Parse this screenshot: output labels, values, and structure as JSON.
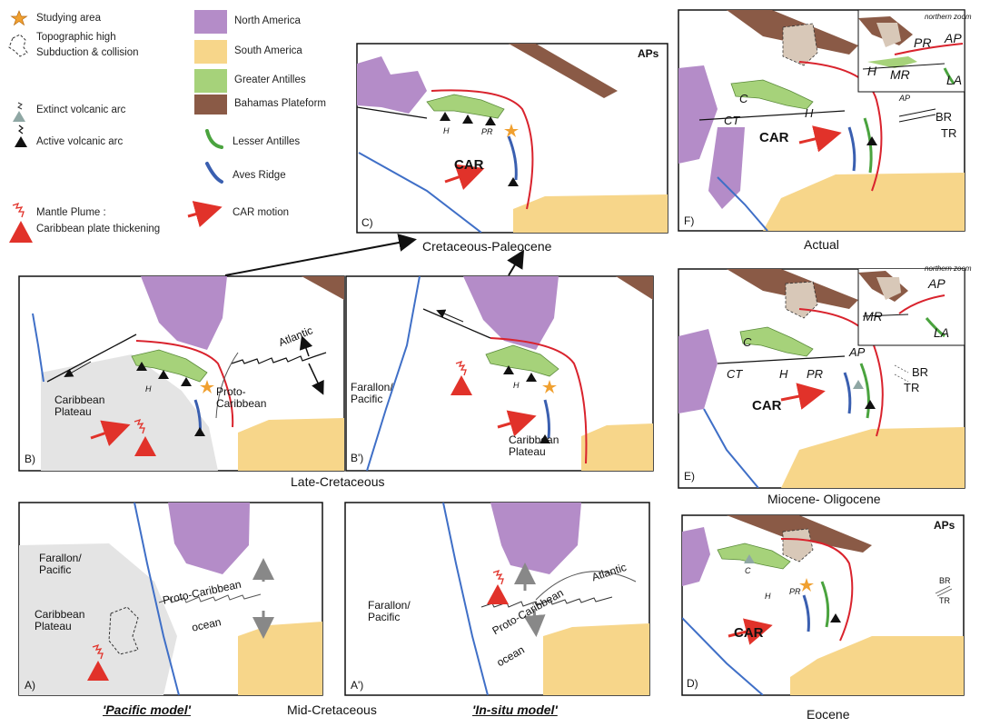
{
  "legend": {
    "items": [
      {
        "icon": "star-icon",
        "label": "Studying area"
      },
      {
        "icon": "dashed-outline-icon",
        "label": "Topographic high"
      },
      {
        "icon": "subduction-icon",
        "label": "Subduction & collision"
      },
      {
        "icon": "grey-triangle-icon",
        "label": "Extinct volcanic arc"
      },
      {
        "icon": "black-triangle-icon",
        "label": "Active volcanic arc"
      },
      {
        "icon": "mantle-plume-icon",
        "label": "Mantle Plume :"
      },
      {
        "icon": "red-triangle-icon",
        "label": "Caribbean plate thickening"
      },
      {
        "icon": "purple-box-icon",
        "label": "North America"
      },
      {
        "icon": "yellow-box-icon",
        "label": "South America"
      },
      {
        "icon": "green-box-icon",
        "label": "Greater Antilles"
      },
      {
        "icon": "brown-box-icon",
        "label": "Bahamas Plateform"
      },
      {
        "icon": "green-arc-icon",
        "label": "Lesser Antilles"
      },
      {
        "icon": "blue-arc-icon",
        "label": "Aves Ridge"
      },
      {
        "icon": "red-arrow-icon",
        "label": "CAR  motion"
      }
    ]
  },
  "colors": {
    "north_america": "#b48cc8",
    "south_america": "#f7d68a",
    "greater_antilles": "#a6d27a",
    "bahamas": "#8a5a46",
    "lesser_antilles": "#4aa33e",
    "aves_ridge": "#3a5fb0",
    "subduction": "#d9232d",
    "plume": "#e1322a",
    "plateau": "#e4e4e4",
    "pacific_trench": "#3f6fc7"
  },
  "panels": {
    "A": {
      "tag": "A)",
      "farallon": "Farallon/\nPacific",
      "plateau": "Caribbean\nPlateau",
      "proto": "Proto-Caribbean",
      "ocean": "ocean"
    },
    "A2": {
      "tag": "A')",
      "farallon": "Farallon/\nPacific",
      "atlantic": "Atlantic",
      "proto": "Proto-Caribbean",
      "ocean": "ocean"
    },
    "B": {
      "tag": "B)",
      "plateau": "Caribbean\nPlateau",
      "atlantic": "Atlantic",
      "proto": "Proto-\nCaribbean",
      "H": "H"
    },
    "B2": {
      "tag": "B')",
      "farallon": "Farallon/\nPacific",
      "plateau": "Caribbean\nPlateau",
      "H": "H"
    },
    "C": {
      "tag": "C)",
      "aps": "APs",
      "car": "CAR",
      "H": "H",
      "PR": "PR"
    },
    "D": {
      "tag": "D)",
      "aps": "APs",
      "car": "CAR",
      "H": "H",
      "PR": "PR",
      "C": "C",
      "BR": "BR",
      "TR": "TR"
    },
    "E": {
      "tag": "E)",
      "car": "CAR",
      "C": "C",
      "CT": "CT",
      "H": "H",
      "PR": "PR",
      "AP": "AP",
      "BR": "BR",
      "TR": "TR",
      "zoom": {
        "title": "northern zoom",
        "MR": "MR",
        "AP": "AP",
        "LA": "LA"
      }
    },
    "F": {
      "tag": "F)",
      "car": "CAR",
      "C": "C",
      "CT": "CT",
      "H": "H",
      "AP": "AP",
      "BR": "BR",
      "TR": "TR",
      "zoom": {
        "title": "northern zoom",
        "PR": "PR",
        "AP": "AP",
        "H": "H",
        "MR": "MR",
        "LA": "LA"
      }
    }
  },
  "captions": {
    "cretaceous_paleocene": "Cretaceous-Paleocene",
    "late_cretaceous": "Late-Cretaceous",
    "mid_cretaceous": "Mid-Cretaceous",
    "pacific_model": "'Pacific model'",
    "insitu_model": "'In-situ model'",
    "actual": "Actual",
    "miocene": "Miocene- Oligocene",
    "eocene": "Eocene"
  }
}
